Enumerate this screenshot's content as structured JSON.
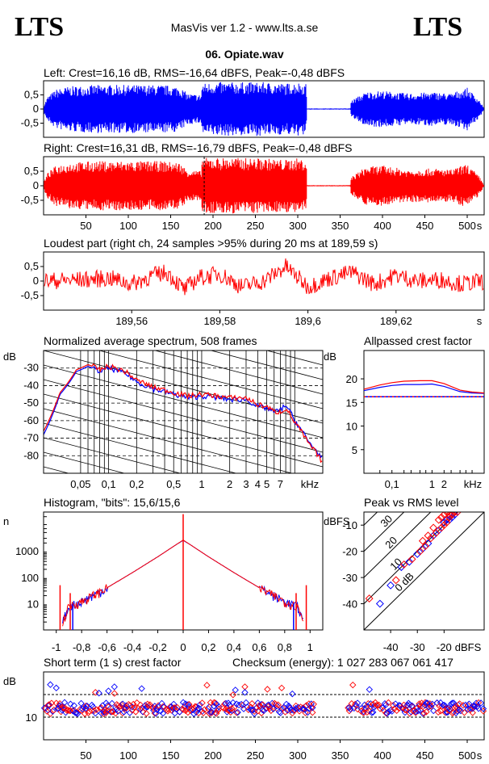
{
  "header": {
    "logo_left": "LTS",
    "logo_right": "LTS",
    "app_title": "MasVis ver 1.2 - www.lts.a.se",
    "file_title": "06. Opiate.wav"
  },
  "colors": {
    "left": "#0000ff",
    "right": "#ff0000",
    "axis": "#000000"
  },
  "chart_data": [
    {
      "id": "left_waveform",
      "type": "area",
      "title": "Left: Crest=16,16 dB, RMS=-16,64 dBFS, Peak=-0,48 dBFS",
      "yticks": [
        "0,5",
        "0",
        "-0,5"
      ],
      "ylim": [
        -1,
        1
      ],
      "xlim": [
        0,
        520
      ],
      "series": [
        {
          "color": "blue"
        }
      ],
      "envelope": [
        [
          0,
          0.12
        ],
        [
          5,
          0.45
        ],
        [
          15,
          0.7
        ],
        [
          30,
          0.8
        ],
        [
          60,
          0.85
        ],
        [
          100,
          0.85
        ],
        [
          140,
          0.85
        ],
        [
          160,
          0.8
        ],
        [
          170,
          0.55
        ],
        [
          186,
          0.5
        ],
        [
          187,
          0.9
        ],
        [
          200,
          0.95
        ],
        [
          260,
          0.95
        ],
        [
          285,
          0.9
        ],
        [
          300,
          0.95
        ],
        [
          310,
          0.9
        ],
        [
          311,
          0.02
        ],
        [
          362,
          0.02
        ],
        [
          363,
          0.3
        ],
        [
          380,
          0.6
        ],
        [
          400,
          0.65
        ],
        [
          430,
          0.55
        ],
        [
          460,
          0.6
        ],
        [
          480,
          0.55
        ],
        [
          500,
          0.75
        ],
        [
          515,
          0.3
        ],
        [
          520,
          0.0
        ]
      ]
    },
    {
      "id": "right_waveform",
      "type": "area",
      "title": "Right: Crest=16,31 dB, RMS=-16,79 dBFS, Peak=-0,48 dBFS",
      "yticks": [
        "0,5",
        "0",
        "-0,5"
      ],
      "ylim": [
        -1,
        1
      ],
      "xlim": [
        0,
        520
      ],
      "xticks": [
        "50",
        "100",
        "150",
        "200",
        "250",
        "300",
        "350",
        "400",
        "450",
        "500"
      ],
      "xunit": "s",
      "marker_at": 189.59,
      "series": [
        {
          "color": "red"
        }
      ],
      "envelope": [
        [
          0,
          0.12
        ],
        [
          5,
          0.45
        ],
        [
          15,
          0.7
        ],
        [
          30,
          0.8
        ],
        [
          60,
          0.85
        ],
        [
          100,
          0.85
        ],
        [
          140,
          0.85
        ],
        [
          160,
          0.8
        ],
        [
          170,
          0.55
        ],
        [
          186,
          0.5
        ],
        [
          187,
          0.95
        ],
        [
          200,
          0.97
        ],
        [
          260,
          0.95
        ],
        [
          285,
          0.9
        ],
        [
          300,
          0.95
        ],
        [
          310,
          0.9
        ],
        [
          311,
          0.02
        ],
        [
          362,
          0.02
        ],
        [
          363,
          0.3
        ],
        [
          380,
          0.65
        ],
        [
          400,
          0.7
        ],
        [
          430,
          0.55
        ],
        [
          460,
          0.6
        ],
        [
          480,
          0.55
        ],
        [
          500,
          0.75
        ],
        [
          515,
          0.3
        ],
        [
          520,
          0.0
        ]
      ]
    },
    {
      "id": "loudest_part",
      "type": "line",
      "title": "Loudest part (right ch, 24 samples >95% during 20 ms at 189,59 s)",
      "yticks": [
        "0,5",
        "0",
        "-0,5"
      ],
      "ylim": [
        -1,
        1
      ],
      "xlim": [
        189.54,
        189.64
      ],
      "xticks": [
        "189,56",
        "189,58",
        "189,6",
        "189,62"
      ],
      "xunit": "s",
      "series": [
        {
          "color": "red"
        }
      ],
      "trend": [
        [
          189.54,
          0.0
        ],
        [
          189.55,
          0.05
        ],
        [
          189.555,
          0.1
        ],
        [
          189.56,
          -0.1
        ],
        [
          189.565,
          0.2
        ],
        [
          189.568,
          0.3
        ],
        [
          189.572,
          -0.3
        ],
        [
          189.575,
          0.1
        ],
        [
          189.58,
          0.25
        ],
        [
          189.585,
          -0.2
        ],
        [
          189.59,
          0.0
        ],
        [
          189.595,
          0.5
        ],
        [
          189.6,
          -0.2
        ],
        [
          189.605,
          0.1
        ],
        [
          189.61,
          0.3
        ],
        [
          189.615,
          -0.1
        ],
        [
          189.62,
          0.2
        ],
        [
          189.625,
          0.0
        ],
        [
          189.63,
          0.05
        ],
        [
          189.635,
          -0.1
        ],
        [
          189.64,
          0.0
        ]
      ]
    },
    {
      "id": "avg_spectrum",
      "type": "line",
      "title": "Normalized average spectrum, 508 frames",
      "ylabel": "dB",
      "yticks": [
        "-30",
        "-40",
        "-50",
        "-60",
        "-70",
        "-80"
      ],
      "ylim": [
        -90,
        -20
      ],
      "xscale": "log",
      "xlim": [
        0.02,
        20
      ],
      "xticks": [
        "0,05",
        "0,1",
        "0,2",
        "0,5",
        "1",
        "2",
        "3",
        "4",
        "5",
        "7"
      ],
      "xunit": "kHz",
      "series": [
        {
          "name": "",
          "color": "blue",
          "points": [
            [
              0.02,
              -68
            ],
            [
              0.03,
              -45
            ],
            [
              0.045,
              -32
            ],
            [
              0.06,
              -29
            ],
            [
              0.08,
              -32
            ],
            [
              0.1,
              -30
            ],
            [
              0.15,
              -33
            ],
            [
              0.2,
              -38
            ],
            [
              0.3,
              -42
            ],
            [
              0.5,
              -45
            ],
            [
              0.7,
              -47
            ],
            [
              1,
              -46
            ],
            [
              1.5,
              -47
            ],
            [
              2,
              -48
            ],
            [
              3,
              -48
            ],
            [
              4,
              -52
            ],
            [
              5,
              -53
            ],
            [
              6,
              -55
            ],
            [
              7,
              -54
            ],
            [
              8,
              -51
            ],
            [
              10,
              -60
            ],
            [
              14,
              -72
            ],
            [
              20,
              -82
            ]
          ]
        },
        {
          "name": "",
          "color": "red",
          "points": [
            [
              0.02,
              -66
            ],
            [
              0.03,
              -44
            ],
            [
              0.045,
              -31
            ],
            [
              0.06,
              -28
            ],
            [
              0.08,
              -31
            ],
            [
              0.1,
              -29
            ],
            [
              0.15,
              -32
            ],
            [
              0.2,
              -37
            ],
            [
              0.3,
              -41
            ],
            [
              0.5,
              -44
            ],
            [
              0.7,
              -46
            ],
            [
              1,
              -45
            ],
            [
              1.5,
              -46
            ],
            [
              2,
              -47
            ],
            [
              3,
              -47
            ],
            [
              4,
              -51
            ],
            [
              5,
              -52
            ],
            [
              6,
              -55
            ],
            [
              7,
              -55
            ],
            [
              8,
              -53
            ],
            [
              10,
              -61
            ],
            [
              14,
              -73
            ],
            [
              20,
              -84
            ]
          ]
        }
      ]
    },
    {
      "id": "allpassed_crest",
      "type": "line",
      "title": "Allpassed crest factor",
      "ylabel": "dB",
      "yticks": [
        "20",
        "15",
        "10",
        "5"
      ],
      "ylim": [
        0,
        26
      ],
      "xscale": "log",
      "xlim": [
        0.02,
        20
      ],
      "xticks": [
        "0,1",
        "1",
        "2"
      ],
      "xunit": "kHz",
      "reference": 16.2,
      "series": [
        {
          "name": "",
          "color": "blue",
          "points": [
            [
              0.02,
              17.5
            ],
            [
              0.05,
              18.2
            ],
            [
              0.1,
              18.6
            ],
            [
              0.2,
              18.8
            ],
            [
              0.5,
              18.8
            ],
            [
              1,
              18.9
            ],
            [
              2,
              18.4
            ],
            [
              5,
              17.3
            ],
            [
              10,
              17.0
            ],
            [
              20,
              16.9
            ]
          ]
        },
        {
          "name": "",
          "color": "red",
          "points": [
            [
              0.02,
              17.8
            ],
            [
              0.05,
              18.7
            ],
            [
              0.1,
              19.2
            ],
            [
              0.2,
              19.5
            ],
            [
              0.5,
              19.6
            ],
            [
              1,
              19.6
            ],
            [
              2,
              19.0
            ],
            [
              5,
              17.6
            ],
            [
              10,
              17.2
            ],
            [
              20,
              17.0
            ]
          ]
        }
      ]
    },
    {
      "id": "histogram",
      "type": "line",
      "title": "Histogram, \"bits\": 15,6/15,6",
      "ylabel": "n",
      "yticks": [
        "1000",
        "100",
        "10"
      ],
      "yscale": "log",
      "ylim": [
        1,
        30000
      ],
      "xlim": [
        -1.1,
        1.1
      ],
      "xticks": [
        "-1",
        "-0,8",
        "-0,6",
        "-0,4",
        "-0,2",
        "0",
        "0,2",
        "0,4",
        "0,6",
        "0,8",
        "1"
      ],
      "series": [
        {
          "name": "",
          "color": "blue",
          "profile": [
            [
              -0.95,
              2
            ],
            [
              -0.9,
              8
            ],
            [
              -0.8,
              12
            ],
            [
              -0.6,
              40
            ],
            [
              -0.4,
              150
            ],
            [
              -0.2,
              600
            ],
            [
              -0.05,
              1800
            ],
            [
              0,
              2500
            ],
            [
              0.05,
              1800
            ],
            [
              0.2,
              600
            ],
            [
              0.4,
              150
            ],
            [
              0.6,
              40
            ],
            [
              0.8,
              12
            ],
            [
              0.9,
              8
            ],
            [
              0.95,
              2
            ]
          ]
        },
        {
          "name": "",
          "color": "red",
          "profile": [
            [
              -0.95,
              2
            ],
            [
              -0.9,
              8
            ],
            [
              -0.8,
              12
            ],
            [
              -0.6,
              40
            ],
            [
              -0.4,
              150
            ],
            [
              -0.2,
              600
            ],
            [
              -0.05,
              1800
            ],
            [
              0,
              2600
            ],
            [
              0.05,
              1800
            ],
            [
              0.2,
              600
            ],
            [
              0.4,
              150
            ],
            [
              0.6,
              40
            ],
            [
              0.8,
              12
            ],
            [
              0.9,
              8
            ],
            [
              0.95,
              2
            ]
          ]
        }
      ],
      "spikes": [
        {
          "x": -0.97,
          "n": 50,
          "color": "red"
        },
        {
          "x": -0.89,
          "n": 25,
          "color": "red"
        },
        {
          "x": -0.87,
          "n": 10,
          "color": "blue"
        },
        {
          "x": 0.0,
          "n": 25000,
          "color": "red"
        },
        {
          "x": 0.87,
          "n": 10,
          "color": "blue"
        },
        {
          "x": 0.89,
          "n": 25,
          "color": "red"
        },
        {
          "x": 0.97,
          "n": 50,
          "color": "red"
        }
      ]
    },
    {
      "id": "peak_vs_rms",
      "type": "scatter",
      "title": "Peak vs RMS level",
      "ylabel": "dBFS",
      "xlabel": "dBFS",
      "yticks": [
        "-10",
        "-20",
        "-30",
        "-40"
      ],
      "xticks": [
        "-40",
        "-30",
        "-20"
      ],
      "xlim": [
        -50,
        -5
      ],
      "ylim": [
        -50,
        -5
      ],
      "crest_lines": [
        "40",
        "30",
        "20",
        "10",
        "0 dB"
      ],
      "series": [
        {
          "name": "",
          "color": "blue",
          "points": [
            [
              -44,
              -40
            ],
            [
              -40,
              -33
            ],
            [
              -36,
              -26
            ],
            [
              -33,
              -24
            ],
            [
              -30,
              -21
            ],
            [
              -28,
              -19
            ],
            [
              -26,
              -17
            ],
            [
              -24,
              -14
            ],
            [
              -22,
              -12
            ],
            [
              -20,
              -9
            ],
            [
              -19,
              -8
            ],
            [
              -18,
              -8
            ],
            [
              -17,
              -7
            ],
            [
              -16,
              -6
            ]
          ]
        },
        {
          "name": "",
          "color": "red",
          "points": [
            [
              -48,
              -38
            ],
            [
              -38,
              -31
            ],
            [
              -35,
              -25
            ],
            [
              -32,
              -23
            ],
            [
              -29,
              -20
            ],
            [
              -27,
              -18
            ],
            [
              -25,
              -15
            ],
            [
              -23,
              -13
            ],
            [
              -21,
              -11
            ],
            [
              -20,
              -10
            ],
            [
              -19,
              -9
            ],
            [
              -18,
              -7
            ],
            [
              -17,
              -6
            ],
            [
              -16,
              -5
            ],
            [
              -15,
              -5
            ],
            [
              -22,
              -8
            ],
            [
              -21,
              -7
            ],
            [
              -20,
              -6
            ],
            [
              -19,
              -5
            ],
            [
              -18,
              -6
            ],
            [
              -24,
              -11
            ],
            [
              -26,
              -14
            ],
            [
              -28,
              -16
            ]
          ]
        }
      ]
    },
    {
      "id": "short_term_crest",
      "type": "scatter",
      "title": "Short term (1 s) crest factor",
      "checksum": "Checksum (energy):  1 027 283 067 061 417",
      "ylabel": "dB",
      "yticks": [
        "10"
      ],
      "ylim": [
        0,
        30
      ],
      "xlim": [
        0,
        520
      ],
      "xticks": [
        "50",
        "100",
        "150",
        "200",
        "250",
        "300",
        "350",
        "400",
        "450",
        "500"
      ],
      "xunit": "s",
      "ref_lines": [
        10,
        20
      ],
      "silent_from": 320,
      "silent_to": 350
    }
  ]
}
